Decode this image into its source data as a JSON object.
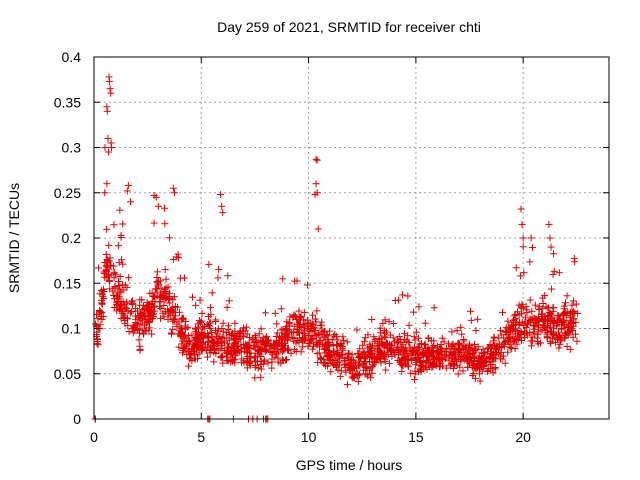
{
  "chart_data": {
    "type": "scatter",
    "title": "Day 259 of 2021, SRMTID for receiver chti",
    "xlabel": "GPS time / hours",
    "ylabel": "SRMTID / TECUs",
    "xlim": [
      0,
      24
    ],
    "ylim": [
      0,
      0.4
    ],
    "x_ticks": [
      0,
      5,
      10,
      15,
      20
    ],
    "x_tick_labels": [
      "0",
      "5",
      "10",
      "15",
      "20"
    ],
    "y_ticks": [
      0,
      0.05,
      0.1,
      0.15,
      0.2,
      0.25,
      0.3,
      0.35,
      0.4
    ],
    "y_tick_labels": [
      "0",
      "0.05",
      "0.1",
      "0.15",
      "0.2",
      "0.25",
      "0.3",
      "0.35",
      "0.4"
    ],
    "grid": true,
    "marker": "+",
    "marker_color": "#e00000",
    "grid_color": "#a0a0a0",
    "series": [
      {
        "name": "SRMTID",
        "trend": [
          [
            0.0,
            0.08
          ],
          [
            0.3,
            0.12
          ],
          [
            0.6,
            0.17
          ],
          [
            0.9,
            0.15
          ],
          [
            1.2,
            0.13
          ],
          [
            1.6,
            0.12
          ],
          [
            2.0,
            0.1
          ],
          [
            2.5,
            0.11
          ],
          [
            3.0,
            0.14
          ],
          [
            3.5,
            0.13
          ],
          [
            4.0,
            0.1
          ],
          [
            4.5,
            0.08
          ],
          [
            5.0,
            0.09
          ],
          [
            5.5,
            0.09
          ],
          [
            6.0,
            0.08
          ],
          [
            6.5,
            0.08
          ],
          [
            7.0,
            0.08
          ],
          [
            7.5,
            0.07
          ],
          [
            8.0,
            0.08
          ],
          [
            8.5,
            0.08
          ],
          [
            9.0,
            0.09
          ],
          [
            9.5,
            0.1
          ],
          [
            10.0,
            0.1
          ],
          [
            10.5,
            0.09
          ],
          [
            11.0,
            0.07
          ],
          [
            11.5,
            0.07
          ],
          [
            12.0,
            0.06
          ],
          [
            12.5,
            0.06
          ],
          [
            13.0,
            0.07
          ],
          [
            13.5,
            0.08
          ],
          [
            14.0,
            0.08
          ],
          [
            14.5,
            0.07
          ],
          [
            15.0,
            0.07
          ],
          [
            15.5,
            0.07
          ],
          [
            16.0,
            0.07
          ],
          [
            16.5,
            0.07
          ],
          [
            17.0,
            0.07
          ],
          [
            17.5,
            0.07
          ],
          [
            18.0,
            0.06
          ],
          [
            18.5,
            0.07
          ],
          [
            19.0,
            0.08
          ],
          [
            19.5,
            0.1
          ],
          [
            20.0,
            0.11
          ],
          [
            20.5,
            0.1
          ],
          [
            21.0,
            0.11
          ],
          [
            21.5,
            0.1
          ],
          [
            22.0,
            0.1
          ],
          [
            22.5,
            0.11
          ]
        ],
        "x_range": [
          0.05,
          22.55
        ],
        "n_points": 1900,
        "spread": 0.035,
        "spikes": [
          [
            0.6,
            0.345
          ],
          [
            0.62,
            0.34
          ],
          [
            0.65,
            0.31
          ],
          [
            0.68,
            0.295
          ],
          [
            0.7,
            0.378
          ],
          [
            0.72,
            0.373
          ],
          [
            0.75,
            0.365
          ],
          [
            0.78,
            0.36
          ],
          [
            0.8,
            0.305
          ],
          [
            0.82,
            0.3
          ],
          [
            0.5,
            0.25
          ],
          [
            0.6,
            0.26
          ],
          [
            1.6,
            0.258
          ],
          [
            1.55,
            0.252
          ],
          [
            1.7,
            0.24
          ],
          [
            2.8,
            0.247
          ],
          [
            2.9,
            0.245
          ],
          [
            3.0,
            0.235
          ],
          [
            3.7,
            0.255
          ],
          [
            3.75,
            0.25
          ],
          [
            5.9,
            0.248
          ],
          [
            5.95,
            0.235
          ],
          [
            6.0,
            0.228
          ],
          [
            10.35,
            0.287
          ],
          [
            10.4,
            0.286
          ],
          [
            10.35,
            0.26
          ],
          [
            10.4,
            0.25
          ],
          [
            10.3,
            0.248
          ],
          [
            10.45,
            0.21
          ],
          [
            19.9,
            0.232
          ],
          [
            19.95,
            0.215
          ],
          [
            20.0,
            0.2
          ],
          [
            21.2,
            0.215
          ],
          [
            21.25,
            0.2
          ],
          [
            21.3,
            0.19
          ]
        ],
        "zero_points": [
          0.05,
          0.07,
          5.3,
          5.35,
          5.4,
          6.5,
          7.2,
          7.4,
          7.6,
          7.9,
          8.0,
          8.05,
          8.1
        ]
      }
    ]
  }
}
